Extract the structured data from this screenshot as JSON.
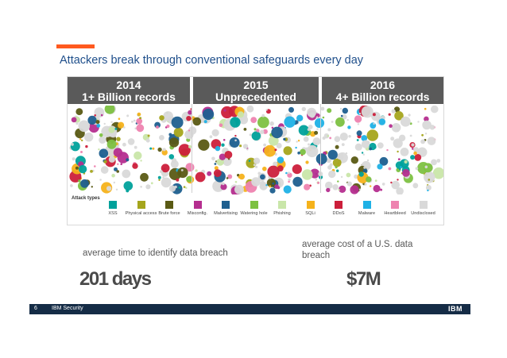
{
  "slide": {
    "title": "Attackers break through conventional safeguards every day",
    "accent_color": "#ff5a1f"
  },
  "years": [
    {
      "year": "2014",
      "records": "1+ Billion records"
    },
    {
      "year": "2015",
      "records": "Unprecedented"
    },
    {
      "year": "2016",
      "records": "4+ Billion records"
    }
  ],
  "legend": {
    "title": "Attack types",
    "items": [
      {
        "label": "XSS",
        "color": "#00a19b"
      },
      {
        "label": "Physical access",
        "color": "#a5a51c"
      },
      {
        "label": "Brute force",
        "color": "#5a5a14"
      },
      {
        "label": "Misconfig.",
        "color": "#b52e8f"
      },
      {
        "label": "Malvertising",
        "color": "#1e5f8f"
      },
      {
        "label": "Watering hole",
        "color": "#7dc142"
      },
      {
        "label": "Phishing",
        "color": "#c9e6a9"
      },
      {
        "label": "SQLi",
        "color": "#f5b21b"
      },
      {
        "label": "DDoS",
        "color": "#cc1f3b"
      },
      {
        "label": "Malware",
        "color": "#1fb1e6"
      },
      {
        "label": "Heartbleed",
        "color": "#ee83b0"
      },
      {
        "label": "Undisclosed",
        "color": "#d9d9d9"
      }
    ]
  },
  "stats": {
    "left_label": "average time to identify data breach",
    "left_value": "201 days",
    "right_label_line1": "average cost of a U.S. data",
    "right_label_line2": "breach",
    "right_value": "$7M"
  },
  "footer": {
    "page_number": "6",
    "brand": "IBM Security",
    "logo": "IBM"
  }
}
